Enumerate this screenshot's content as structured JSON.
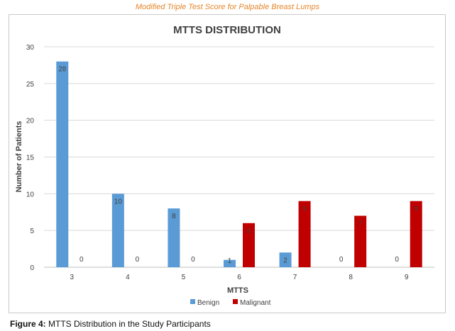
{
  "header": "Modified Triple Test Score for Palpable Breast Lumps",
  "caption": {
    "label": "Figure 4:",
    "text": "MTTS Distribution in the Study Participants"
  },
  "colors": {
    "benign": "#5b9bd5",
    "malignant": "#c00000",
    "grid": "#d9d9d9",
    "text": "#404040",
    "header": "#e5862b"
  },
  "chart_data": {
    "type": "bar",
    "title": "MTTS DISTRIBUTION",
    "xlabel": "MTTS",
    "ylabel": "Number of Patients",
    "categories": [
      "3",
      "4",
      "5",
      "6",
      "7",
      "8",
      "9"
    ],
    "ylim": [
      0,
      30
    ],
    "yticks": [
      0,
      5,
      10,
      15,
      20,
      25,
      30
    ],
    "grid": true,
    "legend_position": "bottom",
    "series": [
      {
        "name": "Benign",
        "values": [
          28,
          10,
          8,
          1,
          2,
          0,
          0
        ]
      },
      {
        "name": "Malignant",
        "values": [
          0,
          0,
          0,
          6,
          9,
          7,
          9
        ]
      }
    ]
  }
}
